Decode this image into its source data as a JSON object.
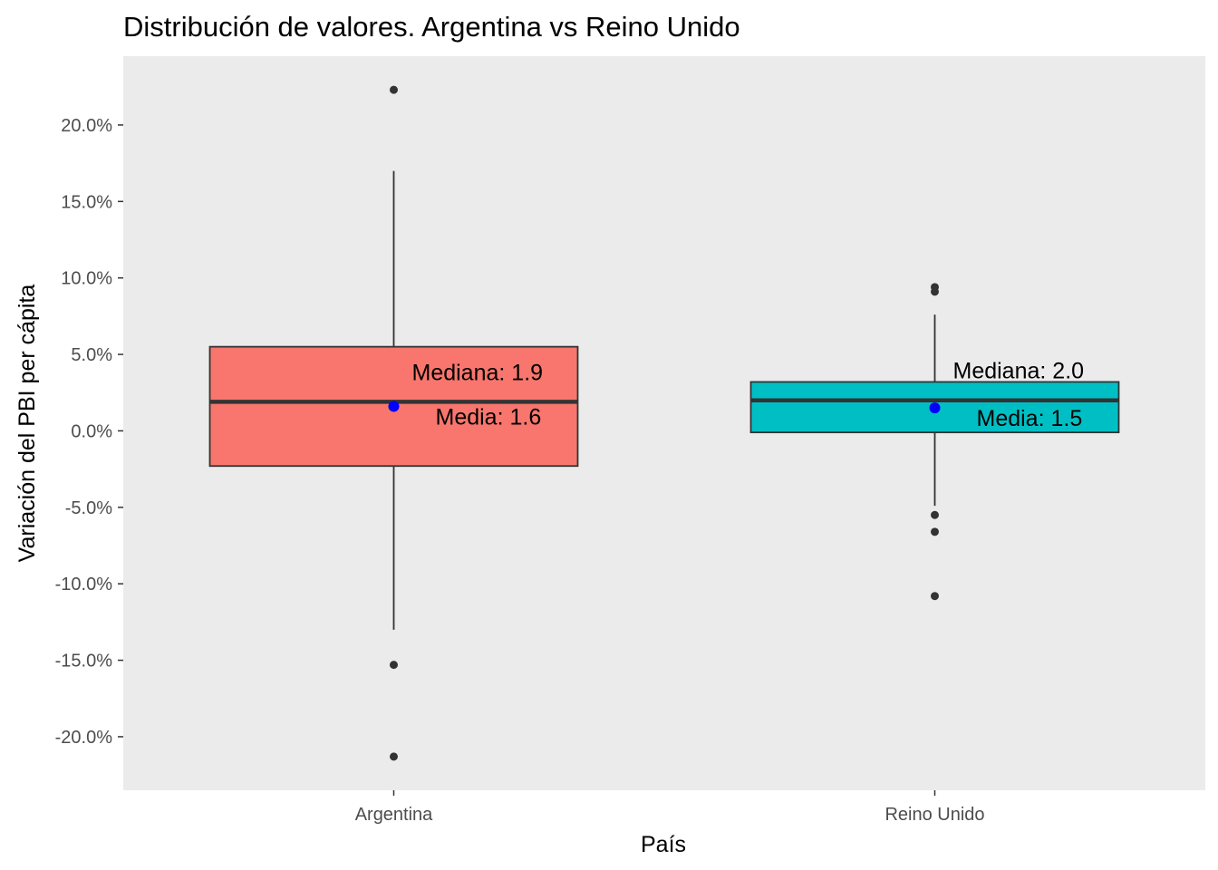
{
  "chart_data": {
    "type": "boxplot",
    "title": "Distribución de valores. Argentina vs Reino Unido",
    "xlabel": "País",
    "ylabel": "Variación del PBI per cápita",
    "ylim": [
      -23.5,
      24.5
    ],
    "yticks": [
      20,
      15,
      10,
      5,
      0,
      -5,
      -10,
      -15,
      -20
    ],
    "ytick_labels": [
      "20.0%",
      "15.0%",
      "10.0%",
      "5.0%",
      "0.0%",
      "-5.0%",
      "-10.0%",
      "-15.0%",
      "-20.0%"
    ],
    "grid": false,
    "background": "#ebebeb",
    "categories": [
      "Argentina",
      "Reino Unido"
    ],
    "boxes": [
      {
        "category": "Argentina",
        "fill": "#f8766d",
        "q1": -2.3,
        "median": 1.9,
        "q3": 5.5,
        "whisker_low": -13.0,
        "whisker_high": 17.0,
        "outliers": [
          22.3,
          -15.3,
          -21.3
        ],
        "mean": 1.6,
        "median_label": "Mediana: 1.9",
        "mean_label": "Media: 1.6"
      },
      {
        "category": "Reino Unido",
        "fill": "#00bfc4",
        "q1": -0.1,
        "median": 2.0,
        "q3": 3.2,
        "whisker_low": -4.9,
        "whisker_high": 7.6,
        "outliers": [
          9.4,
          9.1,
          -5.5,
          -6.6,
          -10.8
        ],
        "mean": 1.5,
        "median_label": "Mediana: 2.0",
        "mean_label": "Media: 1.5"
      }
    ],
    "mean_color": "#0000ff"
  }
}
